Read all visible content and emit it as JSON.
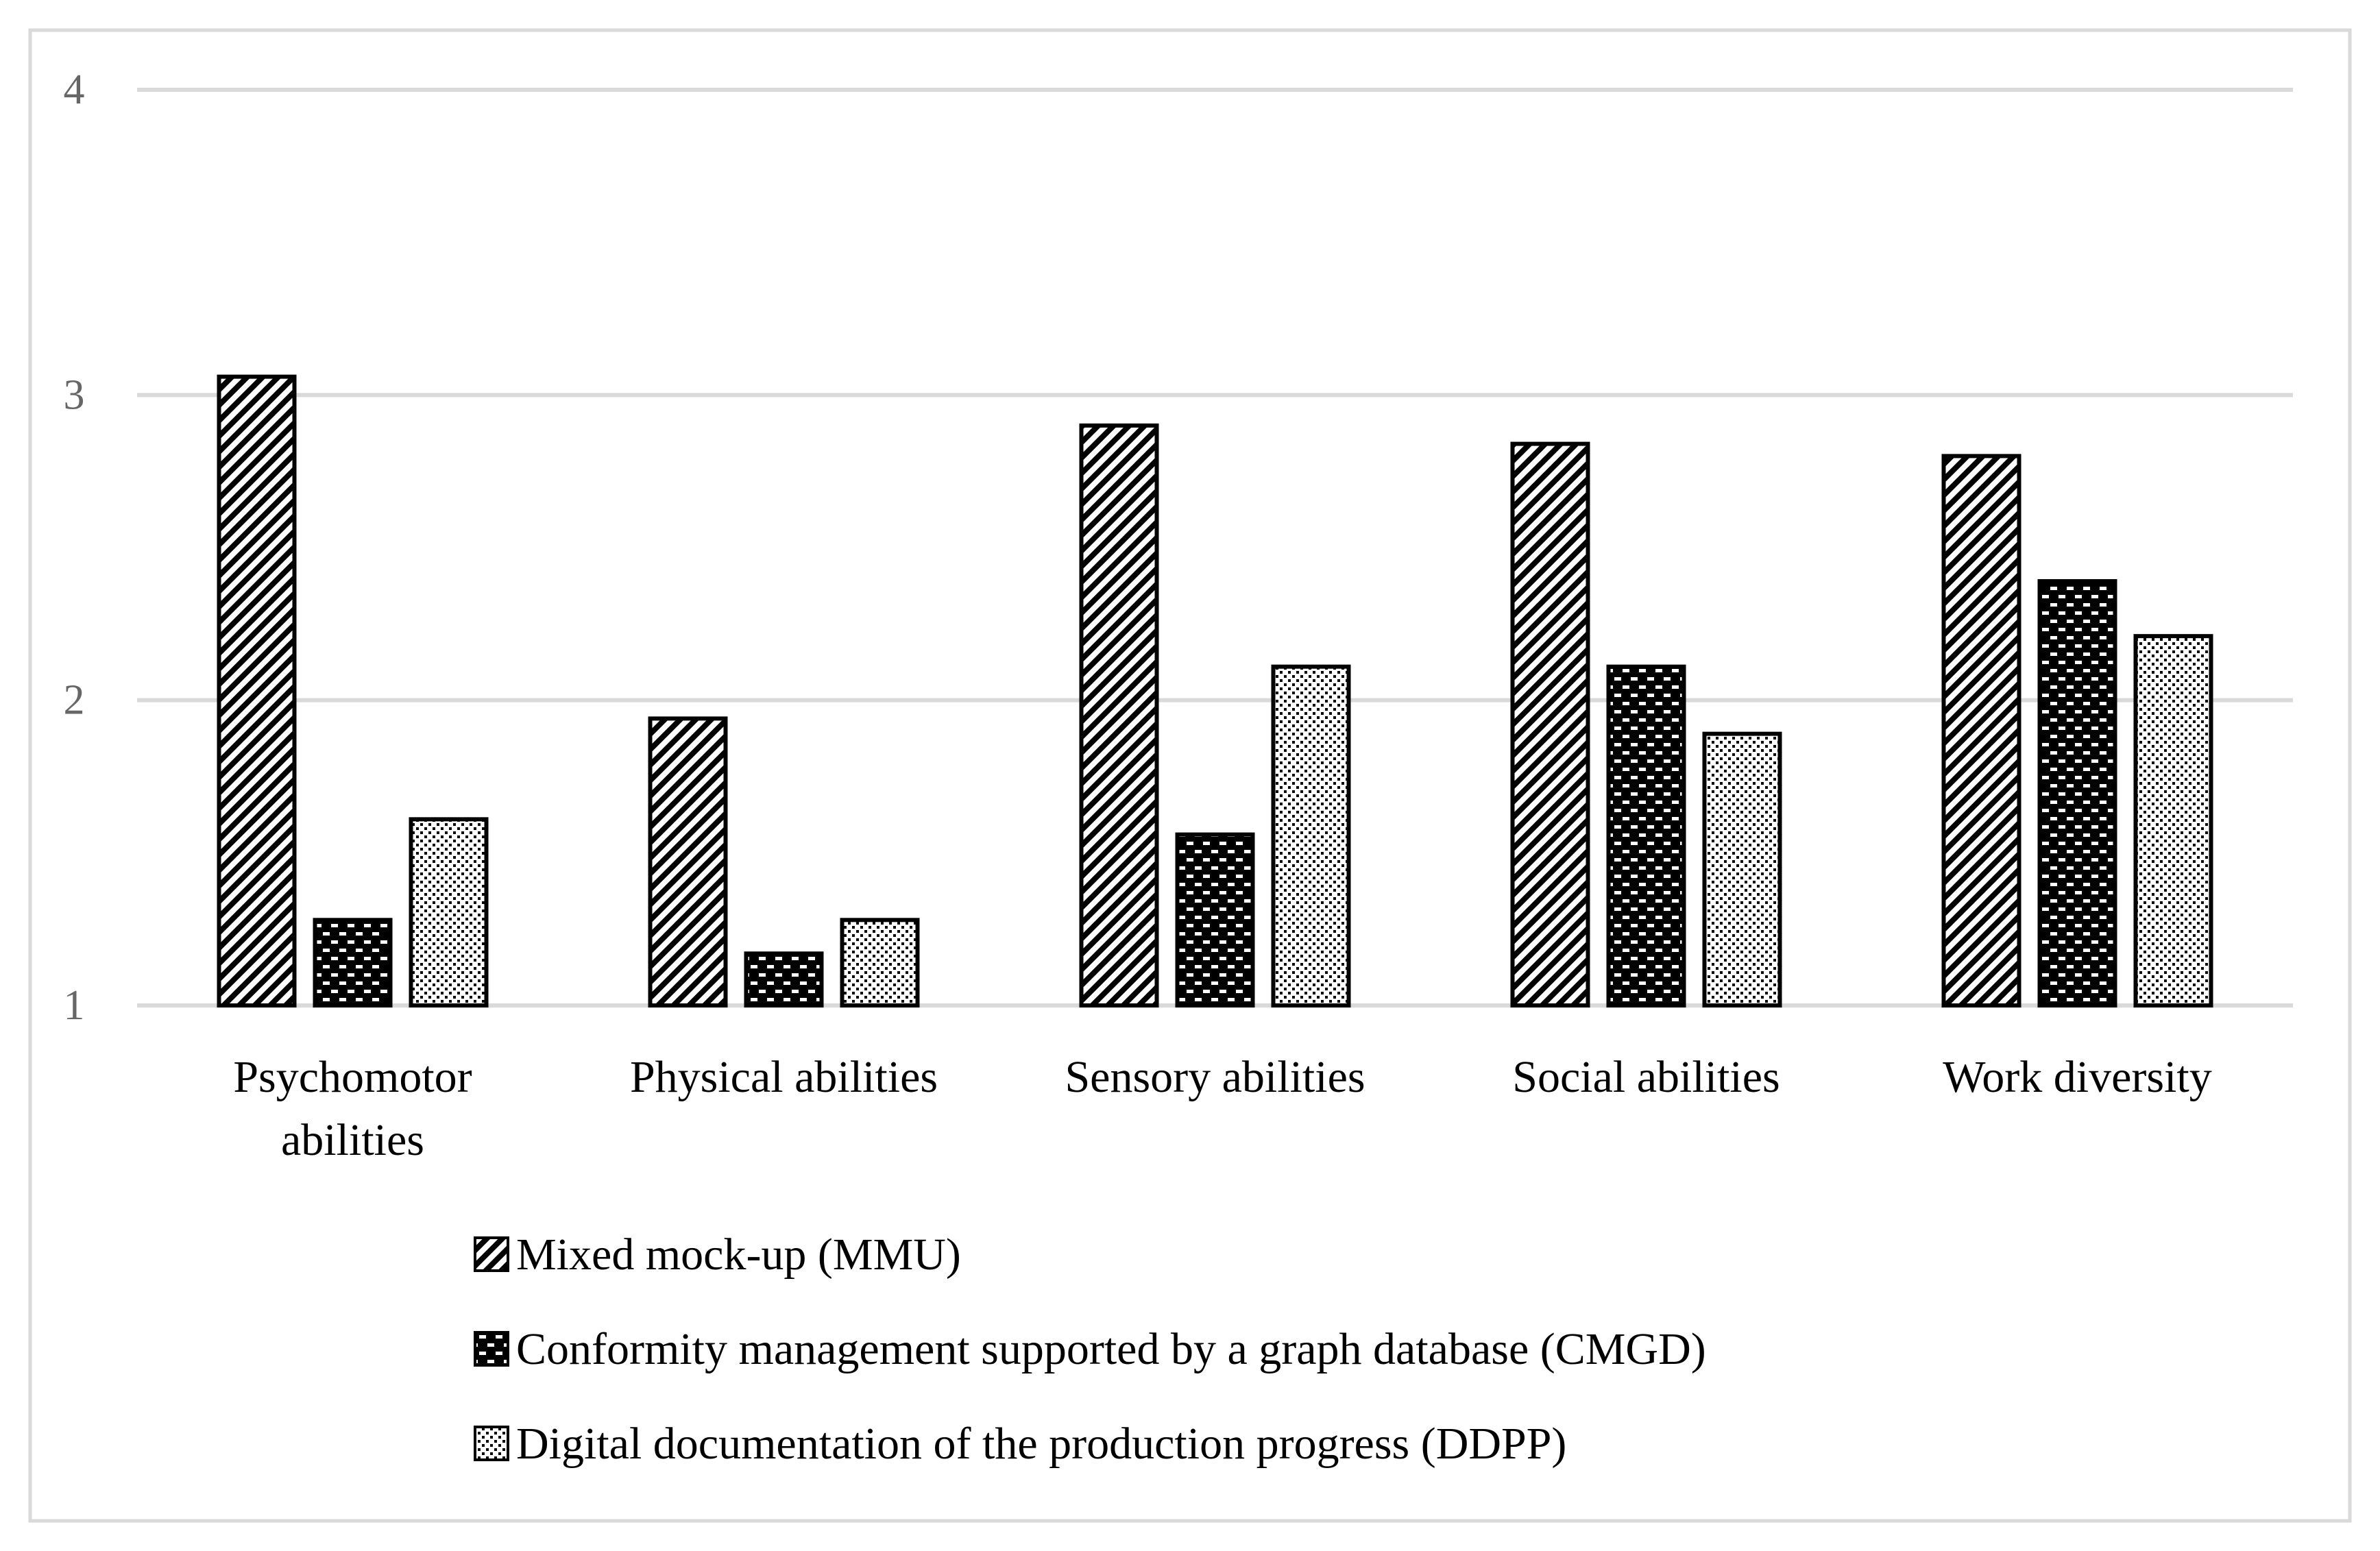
{
  "chart_data": {
    "type": "bar",
    "title": "",
    "xlabel": "",
    "ylabel": "",
    "ylim": [
      1,
      4
    ],
    "yticks": [
      1,
      2,
      3,
      4
    ],
    "grid": true,
    "legend_position": "bottom",
    "categories": [
      [
        "Psychomotor",
        "abilities"
      ],
      [
        "Physical abilities"
      ],
      [
        "Sensory abilities"
      ],
      [
        "Social abilities"
      ],
      [
        "Work diversity"
      ]
    ],
    "series": [
      {
        "name": "Mixed mock-up (MMU)",
        "pattern": "diagonal-hatch",
        "values": [
          3.06,
          1.94,
          2.9,
          2.84,
          2.8
        ]
      },
      {
        "name": "Conformity management supported by a graph database (CMGD)",
        "pattern": "dark-brick",
        "values": [
          1.28,
          1.17,
          1.56,
          2.11,
          2.39
        ]
      },
      {
        "name": "Digital documentation of the production progress (DDPP)",
        "pattern": "light-dots",
        "values": [
          1.61,
          1.28,
          2.11,
          1.89,
          2.21
        ]
      }
    ]
  },
  "colors": {
    "gridline": "#d9d9d9",
    "border": "#d9d9d9",
    "bar_stroke": "#000000",
    "tick_text": "#666666"
  }
}
